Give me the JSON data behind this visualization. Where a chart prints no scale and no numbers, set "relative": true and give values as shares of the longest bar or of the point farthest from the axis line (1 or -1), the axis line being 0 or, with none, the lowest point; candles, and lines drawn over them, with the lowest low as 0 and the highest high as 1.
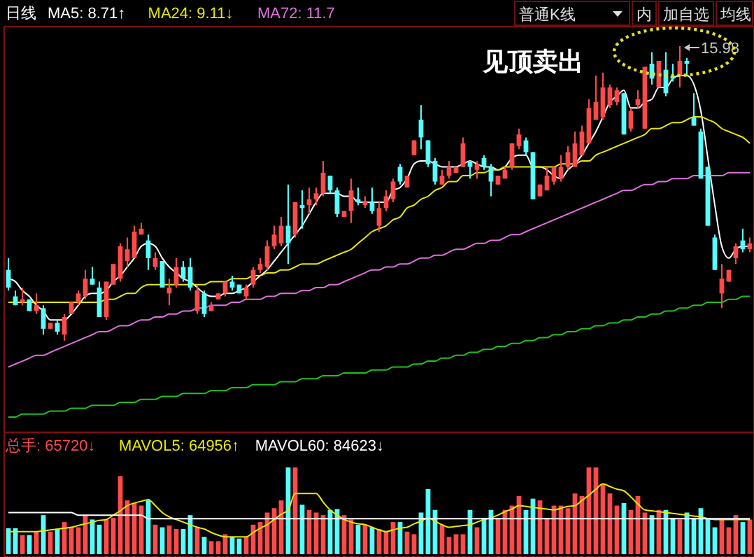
{
  "chart_data": [
    {
      "type": "candlestick",
      "relative": true,
      "title": "日线",
      "legend": "top left",
      "annotations": [
        "见顶卖出",
        "15.98",
        "普通K线",
        "内",
        "加自选",
        "均线"
      ],
      "categories": [
        null,
        null,
        null,
        null,
        null,
        null,
        null,
        null,
        null,
        null,
        null,
        null,
        null,
        null,
        null,
        null,
        null,
        null,
        null,
        null,
        null,
        null,
        null,
        null,
        null,
        null,
        null,
        null,
        null,
        null,
        null,
        null,
        null,
        null,
        null,
        null,
        null,
        null,
        null,
        null,
        null,
        null,
        null,
        null,
        null,
        null,
        null,
        null,
        null,
        null,
        null,
        null,
        null,
        null,
        null,
        null,
        null,
        null,
        null,
        null,
        null,
        null,
        null,
        null,
        null,
        null,
        null,
        null,
        null,
        null,
        null,
        null,
        null,
        null,
        null,
        null,
        null,
        null,
        null,
        null,
        null,
        null,
        null,
        null,
        null,
        null,
        null,
        null,
        null,
        null,
        null,
        null,
        null,
        null,
        null,
        null,
        null,
        null,
        null,
        null,
        null,
        null,
        null,
        null,
        null,
        null,
        null
      ],
      "ohlc": [
        [
          0.24,
          0.28,
          0.17,
          0.18
        ],
        [
          0.15,
          0.17,
          0.12,
          0.12
        ],
        [
          0.13,
          0.18,
          0.12,
          0.14
        ],
        [
          0.14,
          0.14,
          0.1,
          0.1
        ],
        [
          0.1,
          0.16,
          0.09,
          0.12
        ],
        [
          0.11,
          0.12,
          0.02,
          0.04
        ],
        [
          0.04,
          0.06,
          0.04,
          0.06
        ],
        [
          0.06,
          0.07,
          0.02,
          0.03
        ],
        [
          0.02,
          0.09,
          0,
          0.08
        ],
        [
          0.09,
          0.13,
          0.09,
          0.13
        ],
        [
          0.13,
          0.17,
          0.12,
          0.16
        ],
        [
          0.15,
          0.24,
          0.14,
          0.21
        ],
        [
          0.21,
          0.25,
          0.19,
          0.19
        ],
        [
          0.18,
          0.2,
          0.08,
          0.08
        ],
        [
          0.08,
          0.2,
          0.07,
          0.2
        ],
        [
          0.19,
          0.26,
          0.19,
          0.26
        ],
        [
          0.21,
          0.33,
          0.2,
          0.32
        ],
        [
          0.27,
          0.35,
          0.25,
          0.31
        ],
        [
          0.28,
          0.39,
          0.28,
          0.37
        ],
        [
          0.36,
          0.4,
          0.36,
          0.38
        ],
        [
          0.34,
          0.36,
          0.24,
          0.28
        ],
        [
          0.25,
          0.3,
          0.24,
          0.28
        ],
        [
          0.27,
          0.27,
          0.18,
          0.18
        ],
        [
          0.16,
          0.21,
          0.12,
          0.18
        ],
        [
          0.19,
          0.28,
          0.18,
          0.25
        ],
        [
          0.25,
          0.27,
          0.2,
          0.21
        ],
        [
          0.25,
          0.28,
          0.17,
          0.18
        ],
        [
          0.1,
          0.19,
          0.09,
          0.17
        ],
        [
          0.16,
          0.17,
          0.08,
          0.09
        ],
        [
          0.1,
          0.13,
          0.1,
          0.12
        ],
        [
          0.14,
          0.16,
          0.14,
          0.16
        ],
        [
          0.16,
          0.2,
          0.15,
          0.2
        ],
        [
          0.2,
          0.22,
          0.17,
          0.18
        ],
        [
          0.19,
          0.19,
          0.16,
          0.16
        ],
        [
          0.15,
          0.19,
          0.14,
          0.18
        ],
        [
          0.19,
          0.25,
          0.18,
          0.24
        ],
        [
          0.24,
          0.28,
          0.23,
          0.26
        ],
        [
          0.25,
          0.34,
          0.24,
          0.32
        ],
        [
          0.32,
          0.39,
          0.31,
          0.36
        ],
        [
          0.33,
          0.42,
          0.32,
          0.39
        ],
        [
          0.39,
          0.53,
          0.26,
          0.33
        ],
        [
          0.36,
          0.47,
          0.35,
          0.47
        ],
        [
          0.46,
          0.51,
          0.38,
          0.45
        ],
        [
          0.46,
          0.52,
          0.43,
          0.48
        ],
        [
          0.48,
          0.52,
          0.46,
          0.5
        ],
        [
          0.5,
          0.61,
          0.49,
          0.57
        ],
        [
          0.56,
          0.56,
          0.5,
          0.51
        ],
        [
          0.51,
          0.52,
          0.42,
          0.43
        ],
        [
          0.42,
          0.44,
          0.42,
          0.44
        ],
        [
          0.44,
          0.55,
          0.4,
          0.51
        ],
        [
          0.48,
          0.52,
          0.46,
          0.47
        ],
        [
          0.46,
          0.49,
          0.45,
          0.47
        ],
        [
          0.47,
          0.52,
          0.43,
          0.44
        ],
        [
          0.39,
          0.47,
          0.37,
          0.45
        ],
        [
          0.45,
          0.51,
          0.44,
          0.49
        ],
        [
          0.48,
          0.55,
          0.47,
          0.54
        ],
        [
          0.59,
          0.6,
          0.53,
          0.54
        ],
        [
          0.52,
          0.56,
          0.52,
          0.56
        ],
        [
          0.63,
          0.68,
          0.63,
          0.68
        ],
        [
          0.75,
          0.8,
          0.65,
          0.69
        ],
        [
          0.68,
          0.68,
          0.59,
          0.6
        ],
        [
          0.61,
          0.62,
          0.53,
          0.54
        ],
        [
          0.53,
          0.58,
          0.53,
          0.56
        ],
        [
          0.56,
          0.61,
          0.55,
          0.59
        ],
        [
          0.57,
          0.59,
          0.57,
          0.59
        ],
        [
          0.59,
          0.69,
          0.59,
          0.67
        ],
        [
          0.61,
          0.61,
          0.55,
          0.59
        ],
        [
          0.58,
          0.61,
          0.55,
          0.6
        ],
        [
          0.62,
          0.63,
          0.58,
          0.59
        ],
        [
          0.59,
          0.6,
          0.49,
          0.54
        ],
        [
          0.53,
          0.56,
          0.53,
          0.56
        ],
        [
          0.55,
          0.59,
          0.55,
          0.58
        ],
        [
          0.59,
          0.67,
          0.58,
          0.67
        ],
        [
          0.66,
          0.72,
          0.65,
          0.7
        ],
        [
          0.68,
          0.69,
          0.63,
          0.64
        ],
        [
          0.64,
          0.64,
          0.48,
          0.48
        ],
        [
          0.49,
          0.53,
          0.49,
          0.53
        ],
        [
          0.51,
          0.59,
          0.51,
          0.56
        ],
        [
          0.54,
          0.59,
          0.53,
          0.59
        ],
        [
          0.55,
          0.63,
          0.54,
          0.59
        ],
        [
          0.59,
          0.66,
          0.58,
          0.64
        ],
        [
          0.59,
          0.71,
          0.59,
          0.67
        ],
        [
          0.63,
          0.73,
          0.63,
          0.71
        ],
        [
          0.67,
          0.82,
          0.67,
          0.79
        ],
        [
          0.75,
          0.9,
          0.75,
          0.81
        ],
        [
          0.76,
          0.91,
          0.75,
          0.86
        ],
        [
          0.8,
          0.87,
          0.79,
          0.86
        ],
        [
          0.81,
          0.86,
          0.8,
          0.85
        ],
        [
          0.84,
          0.84,
          0.7,
          0.7
        ],
        [
          0.72,
          0.79,
          0.71,
          0.78
        ],
        [
          0.8,
          0.85,
          0.79,
          0.82
        ],
        [
          0.72,
          0.93,
          0.72,
          0.93
        ],
        [
          0.94,
          0.98,
          0.87,
          0.89
        ],
        [
          0.86,
          0.95,
          0.86,
          0.95
        ],
        [
          0.92,
          0.98,
          0.83,
          0.84
        ],
        [
          0.9,
          0.94,
          0.88,
          0.89
        ],
        [
          0.9,
          1,
          0.86,
          0.95
        ],
        [
          0.95,
          0.96,
          0.9,
          0.94
        ],
        [
          0.76,
          0.84,
          0.73,
          0.73
        ],
        [
          0.71,
          0.72,
          0.55,
          0.55
        ],
        [
          0.59,
          0.59,
          0.39,
          0.39
        ],
        [
          0.35,
          0.36,
          0.24,
          0.24
        ],
        [
          0.16,
          0.26,
          0.11,
          0.21
        ],
        [
          0.2,
          0.24,
          0.2,
          0.24
        ],
        [
          0.28,
          0.33,
          0.26,
          0.32
        ],
        [
          0.34,
          0.38,
          0.3,
          0.31
        ],
        [
          0.31,
          0.35,
          0.3,
          0.33
        ]
      ],
      "colors": [
        "#55ffff",
        "#55ffff",
        "#ff4a4a",
        "#55ffff",
        "#ff4a4a",
        "#55ffff",
        "#ff4a4a",
        "#55ffff",
        "#ff4a4a",
        "#ff4a4a",
        "#ff4a4a",
        "#ff4a4a",
        "#55ffff",
        "#55ffff",
        "#ff4a4a",
        "#ff4a4a",
        "#ff4a4a",
        "#ff4a4a",
        "#ff4a4a",
        "#ff4a4a",
        "#55ffff",
        "#ff4a4a",
        "#55ffff",
        "#ff4a4a",
        "#ff4a4a",
        "#55ffff",
        "#55ffff",
        "#ff4a4a",
        "#55ffff",
        "#ff4a4a",
        "#ff4a4a",
        "#ff4a4a",
        "#55ffff",
        "#55ffff",
        "#ff4a4a",
        "#ff4a4a",
        "#ff4a4a",
        "#ff4a4a",
        "#ff4a4a",
        "#ff4a4a",
        "#55ffff",
        "#ff4a4a",
        "#55ffff",
        "#ff4a4a",
        "#ff4a4a",
        "#ff4a4a",
        "#55ffff",
        "#55ffff",
        "#ff4a4a",
        "#ff4a4a",
        "#55ffff",
        "#ff4a4a",
        "#55ffff",
        "#ff4a4a",
        "#ff4a4a",
        "#ff4a4a",
        "#55ffff",
        "#ff4a4a",
        "#ff4a4a",
        "#55ffff",
        "#55ffff",
        "#55ffff",
        "#ff4a4a",
        "#ff4a4a",
        "#ff4a4a",
        "#ff4a4a",
        "#55ffff",
        "#ff4a4a",
        "#55ffff",
        "#55ffff",
        "#ff4a4a",
        "#ff4a4a",
        "#ff4a4a",
        "#ff4a4a",
        "#55ffff",
        "#55ffff",
        "#ff4a4a",
        "#ff4a4a",
        "#ff4a4a",
        "#ff4a4a",
        "#ff4a4a",
        "#ff4a4a",
        "#ff4a4a",
        "#ff4a4a",
        "#ff4a4a",
        "#ff4a4a",
        "#ff4a4a",
        "#ff4a4a",
        "#55ffff",
        "#ff4a4a",
        "#ff4a4a",
        "#ff4a4a",
        "#55ffff",
        "#ff4a4a",
        "#55ffff",
        "#55ffff",
        "#ff4a4a",
        "#55ffff",
        "#55ffff",
        "#55ffff",
        "#55ffff",
        "#55ffff",
        "#ff4a4a",
        "#ff4a4a",
        "#ff4a4a",
        "#55ffff",
        "#ff4a4a"
      ],
      "series": [
        {
          "type": "line",
          "name": "MA5: 8.71↑",
          "color": "#ffffff",
          "values": [
            0.21,
            0.2,
            0.17,
            0.15,
            0.12,
            0.1,
            0.07,
            0.07,
            0.07,
            0.09,
            0.12,
            0.15,
            0.16,
            0.16,
            0.17,
            0.2,
            0.22,
            0.25,
            0.28,
            0.32,
            0.33,
            0.32,
            0.28,
            0.25,
            0.23,
            0.21,
            0.2,
            0.18,
            0.16,
            0.15,
            0.15,
            0.16,
            0.16,
            0.17,
            0.18,
            0.2,
            0.22,
            0.24,
            0.27,
            0.3,
            0.33,
            0.36,
            0.39,
            0.43,
            0.47,
            0.5,
            0.5,
            0.5,
            0.49,
            0.49,
            0.47,
            0.47,
            0.47,
            0.47,
            0.47,
            0.51,
            0.52,
            0.55,
            0.6,
            0.61,
            0.61,
            0.6,
            0.59,
            0.59,
            0.59,
            0.6,
            0.61,
            0.6,
            0.59,
            0.59,
            0.58,
            0.59,
            0.62,
            0.63,
            0.63,
            0.59,
            0.59,
            0.58,
            0.56,
            0.55,
            0.58,
            0.6,
            0.63,
            0.67,
            0.71,
            0.76,
            0.81,
            0.83,
            0.85,
            0.79,
            0.79,
            0.81,
            0.82,
            0.86,
            0.86,
            0.89,
            0.9,
            0.9,
            0.87,
            0.78,
            0.62,
            0.46,
            0.32,
            0.28,
            0.31,
            0.32,
            0.32
          ]
        },
        {
          "type": "line",
          "name": "MA24: 9.11↓",
          "color": "#e8e800",
          "values": [
            0.13,
            0.13,
            0.13,
            0.13,
            0.13,
            0.13,
            0.13,
            0.13,
            0.13,
            0.13,
            0.13,
            0.13,
            0.13,
            0.13,
            0.14,
            0.14,
            0.15,
            0.16,
            0.16,
            0.18,
            0.19,
            0.19,
            0.19,
            0.19,
            0.19,
            0.19,
            0.19,
            0.19,
            0.19,
            0.2,
            0.2,
            0.2,
            0.21,
            0.21,
            0.21,
            0.22,
            0.22,
            0.23,
            0.23,
            0.24,
            0.24,
            0.25,
            0.26,
            0.26,
            0.26,
            0.27,
            0.28,
            0.29,
            0.3,
            0.31,
            0.33,
            0.35,
            0.37,
            0.38,
            0.39,
            0.41,
            0.42,
            0.45,
            0.46,
            0.48,
            0.49,
            0.51,
            0.52,
            0.54,
            0.54,
            0.56,
            0.56,
            0.57,
            0.57,
            0.58,
            0.58,
            0.59,
            0.59,
            0.59,
            0.59,
            0.59,
            0.59,
            0.59,
            0.59,
            0.6,
            0.6,
            0.6,
            0.61,
            0.61,
            0.63,
            0.64,
            0.65,
            0.66,
            0.67,
            0.68,
            0.69,
            0.7,
            0.72,
            0.72,
            0.73,
            0.74,
            0.74,
            0.75,
            0.76,
            0.76,
            0.75,
            0.74,
            0.72,
            0.71,
            0.7,
            0.69,
            0.67
          ]
        },
        {
          "type": "line",
          "name": "MA72: 11.7",
          "color": "#e070e0",
          "values": [
            -0.09,
            -0.08,
            -0.07,
            -0.06,
            -0.05,
            -0.05,
            -0.04,
            -0.03,
            -0.02,
            -0.01,
            0,
            0.01,
            0.02,
            0.03,
            0.03,
            0.04,
            0.05,
            0.05,
            0.06,
            0.07,
            0.07,
            0.08,
            0.08,
            0.09,
            0.09,
            0.1,
            0.1,
            0.11,
            0.11,
            0.12,
            0.12,
            0.12,
            0.13,
            0.13,
            0.14,
            0.14,
            0.14,
            0.15,
            0.15,
            0.16,
            0.16,
            0.16,
            0.17,
            0.17,
            0.18,
            0.18,
            0.19,
            0.19,
            0.2,
            0.21,
            0.22,
            0.23,
            0.24,
            0.24,
            0.25,
            0.25,
            0.26,
            0.26,
            0.27,
            0.28,
            0.28,
            0.29,
            0.29,
            0.3,
            0.31,
            0.31,
            0.32,
            0.33,
            0.33,
            0.34,
            0.34,
            0.35,
            0.36,
            0.36,
            0.37,
            0.38,
            0.39,
            0.4,
            0.41,
            0.42,
            0.43,
            0.44,
            0.45,
            0.46,
            0.47,
            0.48,
            0.49,
            0.5,
            0.51,
            0.51,
            0.52,
            0.53,
            0.53,
            0.54,
            0.54,
            0.55,
            0.55,
            0.55,
            0.56,
            0.56,
            0.56,
            0.56,
            0.56,
            0.57,
            0.57,
            0.57,
            0.57
          ]
        },
        {
          "type": "line",
          "color": "#20c020",
          "values": [
            -0.26,
            -0.26,
            -0.25,
            -0.25,
            -0.25,
            -0.25,
            -0.24,
            -0.24,
            -0.24,
            -0.23,
            -0.23,
            -0.23,
            -0.22,
            -0.22,
            -0.22,
            -0.22,
            -0.21,
            -0.21,
            -0.21,
            -0.2,
            -0.2,
            -0.2,
            -0.19,
            -0.19,
            -0.19,
            -0.18,
            -0.18,
            -0.18,
            -0.18,
            -0.17,
            -0.17,
            -0.17,
            -0.16,
            -0.16,
            -0.16,
            -0.15,
            -0.15,
            -0.15,
            -0.15,
            -0.14,
            -0.14,
            -0.14,
            -0.13,
            -0.13,
            -0.13,
            -0.12,
            -0.12,
            -0.12,
            -0.11,
            -0.11,
            -0.11,
            -0.11,
            -0.1,
            -0.1,
            -0.1,
            -0.09,
            -0.09,
            -0.09,
            -0.08,
            -0.08,
            -0.07,
            -0.07,
            -0.06,
            -0.06,
            -0.05,
            -0.05,
            -0.04,
            -0.04,
            -0.03,
            -0.03,
            -0.02,
            -0.02,
            -0.01,
            -0.01,
            0,
            0,
            0.01,
            0.01,
            0.02,
            0.02,
            0.03,
            0.03,
            0.04,
            0.04,
            0.05,
            0.05,
            0.06,
            0.06,
            0.07,
            0.07,
            0.08,
            0.08,
            0.09,
            0.09,
            0.1,
            0.1,
            0.11,
            0.11,
            0.12,
            0.12,
            0.13,
            0.13,
            0.13,
            0.14,
            0.14,
            0.15,
            0.15
          ]
        }
      ]
    },
    {
      "type": "bar",
      "relative": true,
      "legend": "top left",
      "categories": [
        null,
        null,
        null,
        null,
        null,
        null,
        null,
        null,
        null,
        null,
        null,
        null,
        null,
        null,
        null,
        null,
        null,
        null,
        null,
        null,
        null,
        null,
        null,
        null,
        null,
        null,
        null,
        null,
        null,
        null,
        null,
        null,
        null,
        null,
        null,
        null,
        null,
        null,
        null,
        null,
        null,
        null,
        null,
        null,
        null,
        null,
        null,
        null,
        null,
        null,
        null,
        null,
        null,
        null,
        null,
        null,
        null,
        null,
        null,
        null,
        null,
        null,
        null,
        null,
        null,
        null,
        null,
        null,
        null,
        null,
        null,
        null,
        null,
        null,
        null,
        null,
        null,
        null,
        null,
        null,
        null,
        null,
        null,
        null,
        null,
        null,
        null,
        null,
        null,
        null,
        null,
        null,
        null,
        null,
        null,
        null,
        null,
        null,
        null,
        null,
        null,
        null,
        null,
        null,
        null,
        null,
        null
      ],
      "series": [
        {
          "name": "总手: 65720↓",
          "color": "#ff4a4a",
          "colors": [
            "#55ffff",
            "#55ffff",
            "#ff4a4a",
            "#55ffff",
            "#ff4a4a",
            "#55ffff",
            "#ff4a4a",
            "#55ffff",
            "#ff4a4a",
            "#ff4a4a",
            "#ff4a4a",
            "#ff4a4a",
            "#55ffff",
            "#55ffff",
            "#ff4a4a",
            "#ff4a4a",
            "#ff4a4a",
            "#ff4a4a",
            "#ff4a4a",
            "#ff4a4a",
            "#55ffff",
            "#ff4a4a",
            "#55ffff",
            "#ff4a4a",
            "#ff4a4a",
            "#55ffff",
            "#55ffff",
            "#ff4a4a",
            "#55ffff",
            "#ff4a4a",
            "#ff4a4a",
            "#ff4a4a",
            "#55ffff",
            "#55ffff",
            "#ff4a4a",
            "#ff4a4a",
            "#ff4a4a",
            "#ff4a4a",
            "#ff4a4a",
            "#ff4a4a",
            "#55ffff",
            "#ff4a4a",
            "#55ffff",
            "#ff4a4a",
            "#ff4a4a",
            "#ff4a4a",
            "#55ffff",
            "#55ffff",
            "#ff4a4a",
            "#ff4a4a",
            "#55ffff",
            "#ff4a4a",
            "#55ffff",
            "#ff4a4a",
            "#ff4a4a",
            "#ff4a4a",
            "#55ffff",
            "#ff4a4a",
            "#ff4a4a",
            "#55ffff",
            "#55ffff",
            "#55ffff",
            "#ff4a4a",
            "#ff4a4a",
            "#ff4a4a",
            "#ff4a4a",
            "#55ffff",
            "#ff4a4a",
            "#55ffff",
            "#55ffff",
            "#ff4a4a",
            "#ff4a4a",
            "#ff4a4a",
            "#ff4a4a",
            "#55ffff",
            "#55ffff",
            "#ff4a4a",
            "#ff4a4a",
            "#ff4a4a",
            "#ff4a4a",
            "#ff4a4a",
            "#ff4a4a",
            "#ff4a4a",
            "#ff4a4a",
            "#ff4a4a",
            "#ff4a4a",
            "#ff4a4a",
            "#ff4a4a",
            "#55ffff",
            "#ff4a4a",
            "#ff4a4a",
            "#ff4a4a",
            "#55ffff",
            "#ff4a4a",
            "#55ffff",
            "#55ffff",
            "#ff4a4a",
            "#55ffff",
            "#55ffff",
            "#55ffff",
            "#55ffff",
            "#55ffff",
            "#ff4a4a",
            "#ff4a4a",
            "#ff4a4a",
            "#55ffff",
            "#ff4a4a"
          ],
          "values": [
            0.3,
            0.3,
            0.22,
            0.22,
            0.26,
            0.45,
            0.26,
            0.29,
            0.37,
            0.31,
            0.31,
            0.45,
            0.4,
            0.34,
            0.4,
            0.42,
            0.9,
            0.62,
            0.59,
            0.56,
            0.62,
            0.34,
            0.31,
            0.33,
            0.29,
            0.29,
            0.45,
            0.31,
            0.2,
            0.15,
            0.15,
            0.23,
            0.2,
            0.18,
            0.2,
            0.34,
            0.37,
            0.48,
            0.53,
            0.62,
            1,
            1,
            0.57,
            0.51,
            0.48,
            0.45,
            0.51,
            0.52,
            0.45,
            0.4,
            0.34,
            0.34,
            0.31,
            0.29,
            0.26,
            0.37,
            0.37,
            0.26,
            0.23,
            0.48,
            0.75,
            0.51,
            0.34,
            0.2,
            0.23,
            0.23,
            0.51,
            0.31,
            0.42,
            0.51,
            0.42,
            0.51,
            0.56,
            0.67,
            0.51,
            0.64,
            0.62,
            0.42,
            0.56,
            0.56,
            0.53,
            0.7,
            0.67,
            1,
            1,
            0.81,
            0.7,
            0.56,
            0.59,
            0.51,
            0.67,
            0.48,
            0.45,
            0.51,
            0.51,
            0.42,
            0.4,
            0.48,
            0.42,
            0.53,
            0.42,
            0.31,
            0.4,
            0.31,
            0.45,
            0.37,
            0.4
          ]
        },
        {
          "type": "line",
          "name": "MAVOL5: 64956↑",
          "color": "#e8e800",
          "values": [
            0.26,
            0.26,
            0.26,
            0.26,
            0.26,
            0.27,
            0.28,
            0.29,
            0.3,
            0.31,
            0.33,
            0.35,
            0.37,
            0.39,
            0.4,
            0.45,
            0.5,
            0.56,
            0.59,
            0.61,
            0.63,
            0.56,
            0.48,
            0.43,
            0.4,
            0.37,
            0.34,
            0.31,
            0.29,
            0.25,
            0.22,
            0.2,
            0.2,
            0.2,
            0.2,
            0.25,
            0.3,
            0.34,
            0.4,
            0.46,
            0.51,
            0.7,
            0.7,
            0.7,
            0.7,
            0.6,
            0.51,
            0.45,
            0.4,
            0.37,
            0.35,
            0.34,
            0.31,
            0.28,
            0.26,
            0.28,
            0.3,
            0.31,
            0.35,
            0.38,
            0.42,
            0.38,
            0.34,
            0.31,
            0.32,
            0.33,
            0.34,
            0.37,
            0.4,
            0.42,
            0.45,
            0.49,
            0.52,
            0.56,
            0.55,
            0.54,
            0.53,
            0.52,
            0.51,
            0.53,
            0.55,
            0.56,
            0.62,
            0.68,
            0.75,
            0.81,
            0.78,
            0.75,
            0.73,
            0.66,
            0.58,
            0.51,
            0.5,
            0.49,
            0.48,
            0.47,
            0.46,
            0.45,
            0.44,
            0.43,
            0.41,
            0.4,
            0.4,
            0.4,
            0.4,
            0.4,
            0.4
          ]
        },
        {
          "type": "line",
          "name": "MAVOL60: 84623↓",
          "color": "#ffffff",
          "values": [
            0.48,
            0.48,
            0.48,
            0.48,
            0.48,
            0.48,
            0.48,
            0.48,
            0.48,
            0.48,
            0.45,
            0.45,
            0.45,
            0.45,
            0.45,
            0.45,
            0.45,
            0.45,
            0.45,
            0.45,
            0.41,
            0.41,
            0.41,
            0.41,
            0.41,
            0.41,
            0.41,
            0.41,
            0.41,
            0.41,
            0.41,
            0.41,
            0.41,
            0.41,
            0.41,
            0.41,
            0.41,
            0.41,
            0.41,
            0.41,
            0.41,
            0.41,
            0.41,
            0.41,
            0.41,
            0.41,
            0.41,
            0.41,
            0.41,
            0.41,
            0.41,
            0.41,
            0.41,
            0.41,
            0.41,
            0.41,
            0.41,
            0.41,
            0.41,
            0.41,
            0.41,
            0.41,
            0.41,
            0.41,
            0.41,
            0.41,
            0.41,
            0.41,
            0.41,
            0.41,
            0.41,
            0.41,
            0.41,
            0.41,
            0.41,
            0.41,
            0.41,
            0.41,
            0.41,
            0.41,
            0.41,
            0.41,
            0.41,
            0.41,
            0.41,
            0.41,
            0.41,
            0.41,
            0.41,
            0.41,
            0.41,
            0.41,
            0.41,
            0.41,
            0.41,
            0.41,
            0.41,
            0.41,
            0.41,
            0.41,
            0.41,
            0.41,
            0.41,
            0.41,
            0.41,
            0.41,
            0.41
          ]
        }
      ]
    }
  ]
}
